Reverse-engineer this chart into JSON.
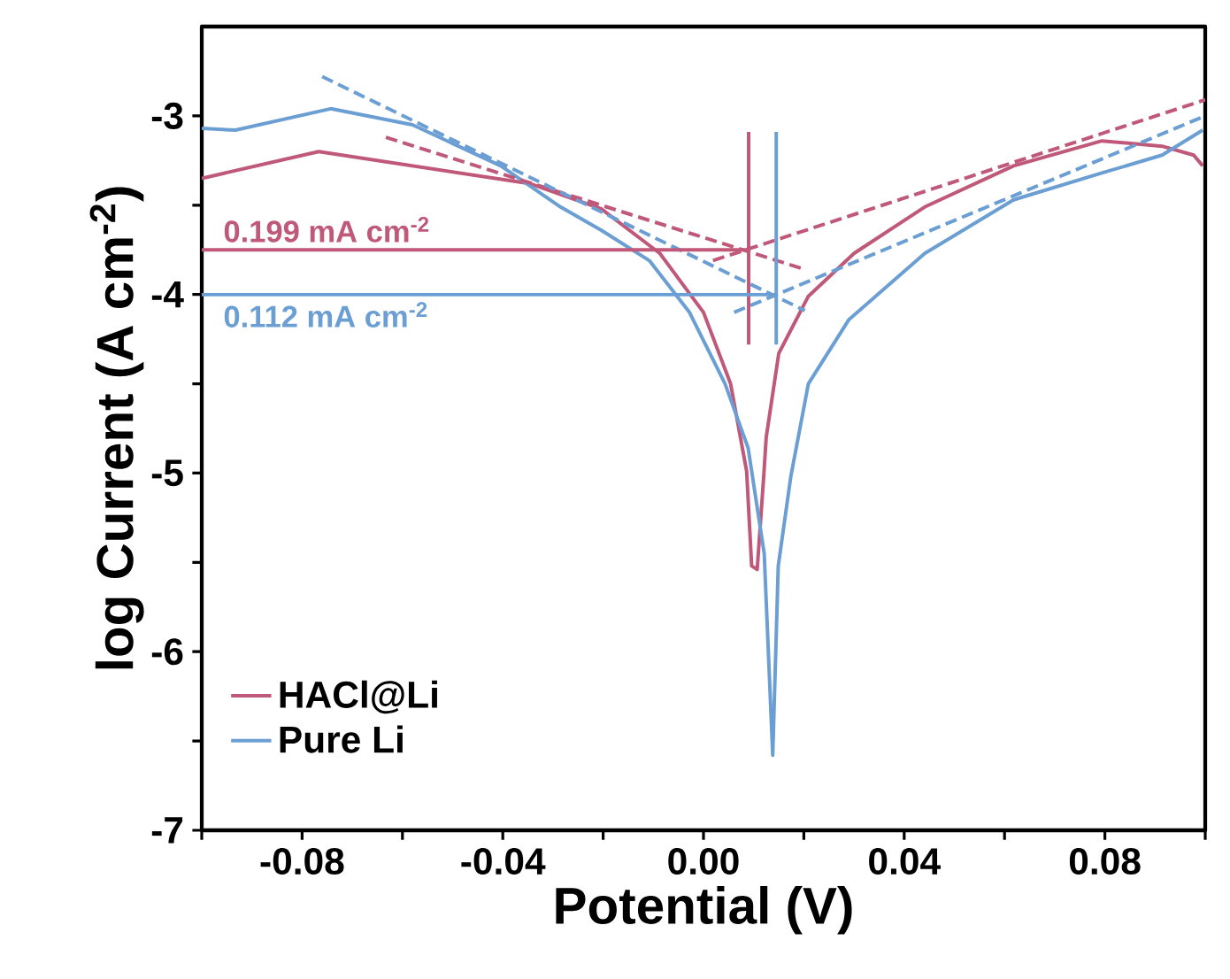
{
  "chart_data": {
    "type": "line",
    "xlabel": "Potential (V)",
    "ylabel": "log Current (A cm$^{-2}$)",
    "xlim": [
      -0.1,
      0.1
    ],
    "ylim": [
      -7,
      -2.5
    ],
    "xticks": [
      {
        "value": -0.1,
        "label": null
      },
      -0.08,
      {
        "value": -0.06,
        "label": null
      },
      -0.04,
      {
        "value": -0.02,
        "label": null
      },
      {
        "value": 0,
        "label": "0.00"
      },
      {
        "value": 0.02,
        "label": null
      },
      0.04,
      {
        "value": 0.06,
        "label": null
      },
      0.08,
      {
        "value": 0.1,
        "label": null
      }
    ],
    "yticks": [
      -7,
      {
        "value": -6.5,
        "label": null
      },
      -6,
      {
        "value": -5.5,
        "label": null
      },
      -5,
      {
        "value": -4.5,
        "label": null
      },
      -4,
      {
        "value": -3.5,
        "label": null
      },
      -3
    ],
    "grid": false,
    "legend": "bottom left",
    "marker": "none",
    "annotations": [
      {
        "text": "0.199 mA cm$^{-2}$",
        "x": -0.1,
        "y": -3.75
      },
      {
        "text": "0.112 mA cm$^{-2}$",
        "x": -0.1,
        "y": -4.0
      }
    ],
    "series": [
      {
        "name": "HACl@Li",
        "color": "#c0587a",
        "line_style": "solid",
        "x": [
          -0.1,
          -0.0767,
          -0.0345,
          -0.0204,
          -0.0087,
          0.0,
          0.0054,
          0.0086,
          0.0096,
          0.0107,
          0.012,
          0.0125,
          0.015,
          0.0209,
          0.03,
          0.0441,
          0.0618,
          0.0794,
          0.0914,
          0.0977,
          0.0995
        ],
        "values": [
          -3.35,
          -3.2,
          -3.38,
          -3.52,
          -3.77,
          -4.1,
          -4.5,
          -4.99,
          -5.52,
          -5.54,
          -5.02,
          -4.8,
          -4.33,
          -4.01,
          -3.77,
          -3.51,
          -3.28,
          -3.14,
          -3.17,
          -3.22,
          -3.28
        ]
      },
      {
        "name": "Pure Li",
        "color": "#6b9fd4",
        "line_style": "solid",
        "x": [
          -0.1,
          -0.0933,
          -0.0743,
          -0.058,
          -0.0404,
          -0.0285,
          -0.0204,
          -0.0108,
          -0.0028,
          0.0043,
          0.0089,
          0.0121,
          0.0138,
          0.0149,
          0.0174,
          0.0209,
          0.029,
          0.0441,
          0.0618,
          0.0794,
          0.0914,
          0.0995
        ],
        "values": [
          -3.07,
          -3.08,
          -2.96,
          -3.05,
          -3.28,
          -3.51,
          -3.64,
          -3.81,
          -4.1,
          -4.5,
          -4.86,
          -5.45,
          -6.58,
          -5.52,
          -5.02,
          -4.5,
          -4.14,
          -3.77,
          -3.47,
          -3.32,
          -3.22,
          -3.08
        ]
      },
      {
        "color": "#c0587a",
        "line_style": "dashed",
        "x": [
          -0.0633,
          0.0202
        ],
        "values": [
          -3.12,
          -3.86
        ]
      },
      {
        "color": "#c0587a",
        "line_style": "dashed",
        "x": [
          0.0019,
          0.1
        ],
        "values": [
          -3.81,
          -2.91
        ]
      },
      {
        "color": "#6b9fd4",
        "line_style": "dashed",
        "x": [
          -0.076,
          0.0202
        ],
        "values": [
          -2.78,
          -4.09
        ]
      },
      {
        "color": "#6b9fd4",
        "line_style": "dashed",
        "x": [
          0.0061,
          0.1
        ],
        "values": [
          -4.1,
          -3.0
        ]
      },
      {
        "color": "#c0587a",
        "line_style": "solid",
        "x": [
          -0.1,
          0.009
        ],
        "values": [
          -3.75,
          -3.75
        ]
      },
      {
        "color": "#c0587a",
        "line_style": "solid",
        "x": [
          0.009,
          0.009
        ],
        "values": [
          -3.09,
          -4.28
        ]
      },
      {
        "color": "#6b9fd4",
        "line_style": "solid",
        "x": [
          -0.1,
          0.0145
        ],
        "values": [
          -4.0,
          -4.0
        ]
      },
      {
        "color": "#6b9fd4",
        "line_style": "solid",
        "x": [
          0.0145,
          0.0145
        ],
        "values": [
          -3.09,
          -4.28
        ]
      }
    ]
  }
}
